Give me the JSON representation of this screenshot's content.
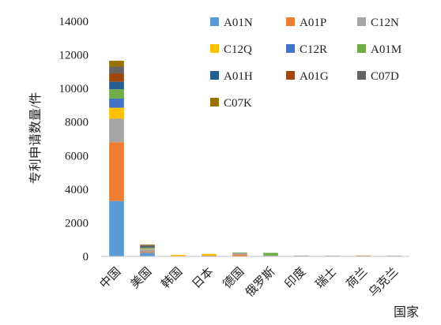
{
  "chart_data": {
    "type": "bar",
    "stacked": true,
    "title": "",
    "xlabel": "国家",
    "ylabel": "专利申请数量/件",
    "ylim": [
      0,
      14000
    ],
    "yticks": [
      0,
      2000,
      4000,
      6000,
      8000,
      10000,
      12000,
      14000
    ],
    "grid": false,
    "legend_position": "top-right",
    "categories": [
      "中国",
      "美国",
      "韩国",
      "日本",
      "德国",
      "俄罗斯",
      "印度",
      "瑞士",
      "荷兰",
      "乌克兰"
    ],
    "series": [
      {
        "name": "A01N",
        "color": "#5b9bd5",
        "values": [
          3300,
          220,
          0,
          0,
          0,
          20,
          30,
          20,
          0,
          20
        ]
      },
      {
        "name": "A01P",
        "color": "#ed7d31",
        "values": [
          3500,
          60,
          0,
          50,
          110,
          0,
          10,
          10,
          50,
          10
        ]
      },
      {
        "name": "C12N",
        "color": "#a5a5a5",
        "values": [
          1400,
          140,
          0,
          0,
          100,
          30,
          10,
          10,
          0,
          10
        ]
      },
      {
        "name": "C12Q",
        "color": "#ffc000",
        "values": [
          650,
          40,
          90,
          100,
          0,
          0,
          0,
          0,
          0,
          0
        ]
      },
      {
        "name": "C12R",
        "color": "#4472c4",
        "values": [
          550,
          40,
          0,
          0,
          0,
          0,
          0,
          0,
          0,
          0
        ]
      },
      {
        "name": "A01M",
        "color": "#70ad47",
        "values": [
          550,
          40,
          0,
          0,
          20,
          160,
          0,
          0,
          0,
          0
        ]
      },
      {
        "name": "A01H",
        "color": "#255e91",
        "values": [
          450,
          60,
          0,
          0,
          0,
          0,
          0,
          0,
          0,
          0
        ]
      },
      {
        "name": "A01G",
        "color": "#9e480e",
        "values": [
          500,
          20,
          0,
          0,
          0,
          0,
          0,
          0,
          0,
          0
        ]
      },
      {
        "name": "C07D",
        "color": "#636363",
        "values": [
          400,
          50,
          0,
          0,
          0,
          0,
          0,
          0,
          0,
          0
        ]
      },
      {
        "name": "C07K",
        "color": "#997300",
        "values": [
          350,
          40,
          0,
          0,
          0,
          0,
          0,
          0,
          0,
          0
        ]
      }
    ]
  }
}
